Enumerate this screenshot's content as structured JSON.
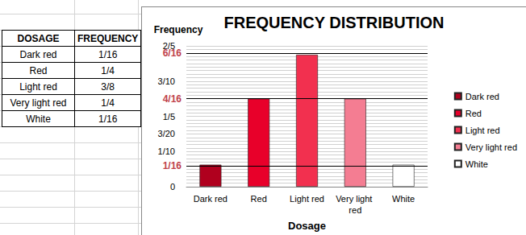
{
  "chart_data": {
    "type": "bar",
    "title": "FREQUENCY DISTRIBUTION",
    "x_label": "Dosage",
    "y_label": "Frequency",
    "categories": [
      "Dark red",
      "Red",
      "Light red",
      "Very light red",
      "White"
    ],
    "values": [
      0.0625,
      0.25,
      0.375,
      0.25,
      0.0625
    ],
    "colors": [
      "#b0001e",
      "#e8002a",
      "#f2304f",
      "#f47d92",
      "#ffffff"
    ],
    "ylim": [
      0,
      0.4
    ],
    "yticks": [
      0,
      {
        "value": 0.1,
        "label": "1/10"
      },
      {
        "value": 0.15,
        "label": "3/20"
      },
      {
        "value": 0.2,
        "label": "1/5"
      },
      {
        "value": 0.3,
        "label": "3/10"
      },
      {
        "value": 0.4,
        "label": "2/5"
      }
    ],
    "annotations": [
      {
        "value": 0.0625,
        "label": "1/16"
      },
      {
        "value": 0.25,
        "label": "4/16"
      },
      {
        "value": 0.375,
        "label": "6/16"
      }
    ],
    "grid": true,
    "legend": "right"
  },
  "table": {
    "header": [
      "DOSAGE",
      "FREQUENCY"
    ],
    "rows": [
      [
        "Dark red",
        "1/16"
      ],
      [
        "Red",
        "1/4"
      ],
      [
        "Light red",
        "3/8"
      ],
      [
        "Very light red",
        "1/4"
      ],
      [
        "White",
        "1/16"
      ]
    ]
  }
}
